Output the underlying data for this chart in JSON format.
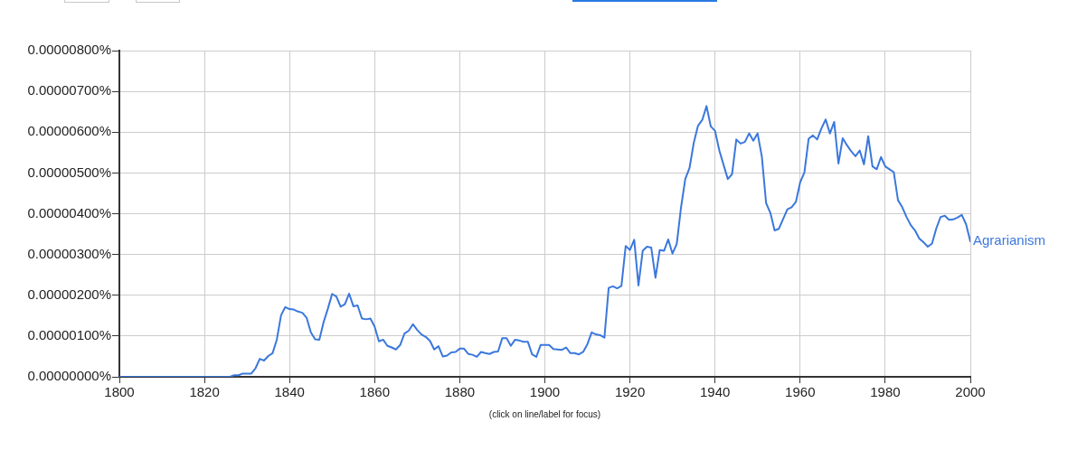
{
  "chart_data": {
    "type": "line",
    "x": [
      1800,
      1801,
      1802,
      1803,
      1804,
      1805,
      1806,
      1807,
      1808,
      1809,
      1810,
      1811,
      1812,
      1813,
      1814,
      1815,
      1816,
      1817,
      1818,
      1819,
      1820,
      1821,
      1822,
      1823,
      1824,
      1825,
      1826,
      1827,
      1828,
      1829,
      1830,
      1831,
      1832,
      1833,
      1834,
      1835,
      1836,
      1837,
      1838,
      1839,
      1840,
      1841,
      1842,
      1843,
      1844,
      1845,
      1846,
      1847,
      1848,
      1849,
      1850,
      1851,
      1852,
      1853,
      1854,
      1855,
      1856,
      1857,
      1858,
      1859,
      1860,
      1861,
      1862,
      1863,
      1864,
      1865,
      1866,
      1867,
      1868,
      1869,
      1870,
      1871,
      1872,
      1873,
      1874,
      1875,
      1876,
      1877,
      1878,
      1879,
      1880,
      1881,
      1882,
      1883,
      1884,
      1885,
      1886,
      1887,
      1888,
      1889,
      1890,
      1891,
      1892,
      1893,
      1894,
      1895,
      1896,
      1897,
      1898,
      1899,
      1900,
      1901,
      1902,
      1903,
      1904,
      1905,
      1906,
      1907,
      1908,
      1909,
      1910,
      1911,
      1912,
      1913,
      1914,
      1915,
      1916,
      1917,
      1918,
      1919,
      1920,
      1921,
      1922,
      1923,
      1924,
      1925,
      1926,
      1927,
      1928,
      1929,
      1930,
      1931,
      1932,
      1933,
      1934,
      1935,
      1936,
      1937,
      1938,
      1939,
      1940,
      1941,
      1942,
      1943,
      1944,
      1945,
      1946,
      1947,
      1948,
      1949,
      1950,
      1951,
      1952,
      1953,
      1954,
      1955,
      1956,
      1957,
      1958,
      1959,
      1960,
      1961,
      1962,
      1963,
      1964,
      1965,
      1966,
      1967,
      1968,
      1969,
      1970,
      1971,
      1972,
      1973,
      1974,
      1975,
      1976,
      1977,
      1978,
      1979,
      1980,
      1981,
      1982,
      1983,
      1984,
      1985,
      1986,
      1987,
      1988,
      1989,
      1990,
      1991,
      1992,
      1993,
      1994,
      1995,
      1996,
      1997,
      1998,
      1999,
      2000
    ],
    "series": [
      {
        "name": "Agrarianism",
        "color": "#3b78dc",
        "values": [
          0,
          0,
          0,
          0,
          0,
          0,
          0,
          0,
          0,
          0,
          0,
          0,
          0,
          0,
          0,
          0,
          0,
          0,
          0,
          0,
          0,
          0,
          0,
          0,
          0,
          0,
          0,
          4e-08,
          4e-08,
          8e-08,
          8e-08,
          8e-08,
          2.1e-07,
          4.4e-07,
          4e-07,
          5.1e-07,
          5.8e-07,
          9.1e-07,
          1.51e-06,
          1.71e-06,
          1.66e-06,
          1.65e-06,
          1.6e-06,
          1.57e-06,
          1.45e-06,
          1.09e-06,
          9.2e-07,
          9.1e-07,
          1.34e-06,
          1.67e-06,
          2.03e-06,
          1.97e-06,
          1.72e-06,
          1.78e-06,
          2.04e-06,
          1.73e-06,
          1.75e-06,
          1.43e-06,
          1.41e-06,
          1.43e-06,
          1.23e-06,
          8.7e-07,
          9.1e-07,
          7.6e-07,
          7.2e-07,
          6.7e-07,
          7.8e-07,
          1.06e-06,
          1.13e-06,
          1.29e-06,
          1.15e-06,
          1.04e-06,
          9.8e-07,
          8.8e-07,
          6.7e-07,
          7.5e-07,
          5e-07,
          5.2e-07,
          6e-07,
          6.1e-07,
          6.9e-07,
          6.9e-07,
          5.6e-07,
          5.4e-07,
          4.9e-07,
          6.1e-07,
          5.8e-07,
          5.6e-07,
          6.1e-07,
          6.2e-07,
          9.5e-07,
          9.5e-07,
          7.6e-07,
          9.1e-07,
          8.9e-07,
          8.6e-07,
          8.6e-07,
          5.5e-07,
          4.9e-07,
          7.8e-07,
          7.8e-07,
          7.8e-07,
          6.8e-07,
          6.7e-07,
          6.6e-07,
          7.2e-07,
          5.8e-07,
          5.8e-07,
          5.5e-07,
          6.1e-07,
          8e-07,
          1.09e-06,
          1.04e-06,
          1.02e-06,
          9.6e-07,
          2.18e-06,
          2.22e-06,
          2.17e-06,
          2.23e-06,
          3.21e-06,
          3.11e-06,
          3.36e-06,
          2.24e-06,
          3.09e-06,
          3.19e-06,
          3.17e-06,
          2.43e-06,
          3.11e-06,
          3.09e-06,
          3.37e-06,
          3.02e-06,
          3.26e-06,
          4.15e-06,
          4.85e-06,
          5.12e-06,
          5.74e-06,
          6.16e-06,
          6.3e-06,
          6.64e-06,
          6.14e-06,
          6.03e-06,
          5.55e-06,
          5.2e-06,
          4.85e-06,
          4.97e-06,
          5.82e-06,
          5.72e-06,
          5.76e-06,
          5.97e-06,
          5.79e-06,
          5.97e-06,
          5.4e-06,
          4.26e-06,
          4.02e-06,
          3.59e-06,
          3.63e-06,
          3.87e-06,
          4.11e-06,
          4.16e-06,
          4.29e-06,
          4.77e-06,
          5.01e-06,
          5.84e-06,
          5.92e-06,
          5.82e-06,
          6.09e-06,
          6.31e-06,
          5.97e-06,
          6.25e-06,
          5.23e-06,
          5.85e-06,
          5.68e-06,
          5.53e-06,
          5.41e-06,
          5.55e-06,
          5.21e-06,
          5.9e-06,
          5.16e-06,
          5.09e-06,
          5.39e-06,
          5.16e-06,
          5.09e-06,
          5.02e-06,
          4.33e-06,
          4.16e-06,
          3.92e-06,
          3.72e-06,
          3.59e-06,
          3.39e-06,
          3.3e-06,
          3.19e-06,
          3.27e-06,
          3.64e-06,
          3.92e-06,
          3.95e-06,
          3.85e-06,
          3.86e-06,
          3.91e-06,
          3.97e-06,
          3.74e-06,
          3.32e-06
        ]
      }
    ],
    "xlim": [
      1800,
      2000
    ],
    "xticks": [
      1800,
      1820,
      1840,
      1860,
      1880,
      1900,
      1920,
      1940,
      1960,
      1980,
      2000
    ],
    "ylim": [
      0,
      8e-06
    ],
    "yticks": [
      {
        "value": 0,
        "label": "0.00000000%"
      },
      {
        "value": 1e-06,
        "label": "0.00000100%"
      },
      {
        "value": 2e-06,
        "label": "0.00000200%"
      },
      {
        "value": 3e-06,
        "label": "0.00000300%"
      },
      {
        "value": 4e-06,
        "label": "0.00000400%"
      },
      {
        "value": 5e-06,
        "label": "0.00000500%"
      },
      {
        "value": 6e-06,
        "label": "0.00000600%"
      },
      {
        "value": 7e-06,
        "label": "0.00000700%"
      },
      {
        "value": 8e-06,
        "label": "0.00000800%"
      }
    ],
    "grid": true,
    "annotations": [
      "(click on line/label for focus)"
    ]
  }
}
